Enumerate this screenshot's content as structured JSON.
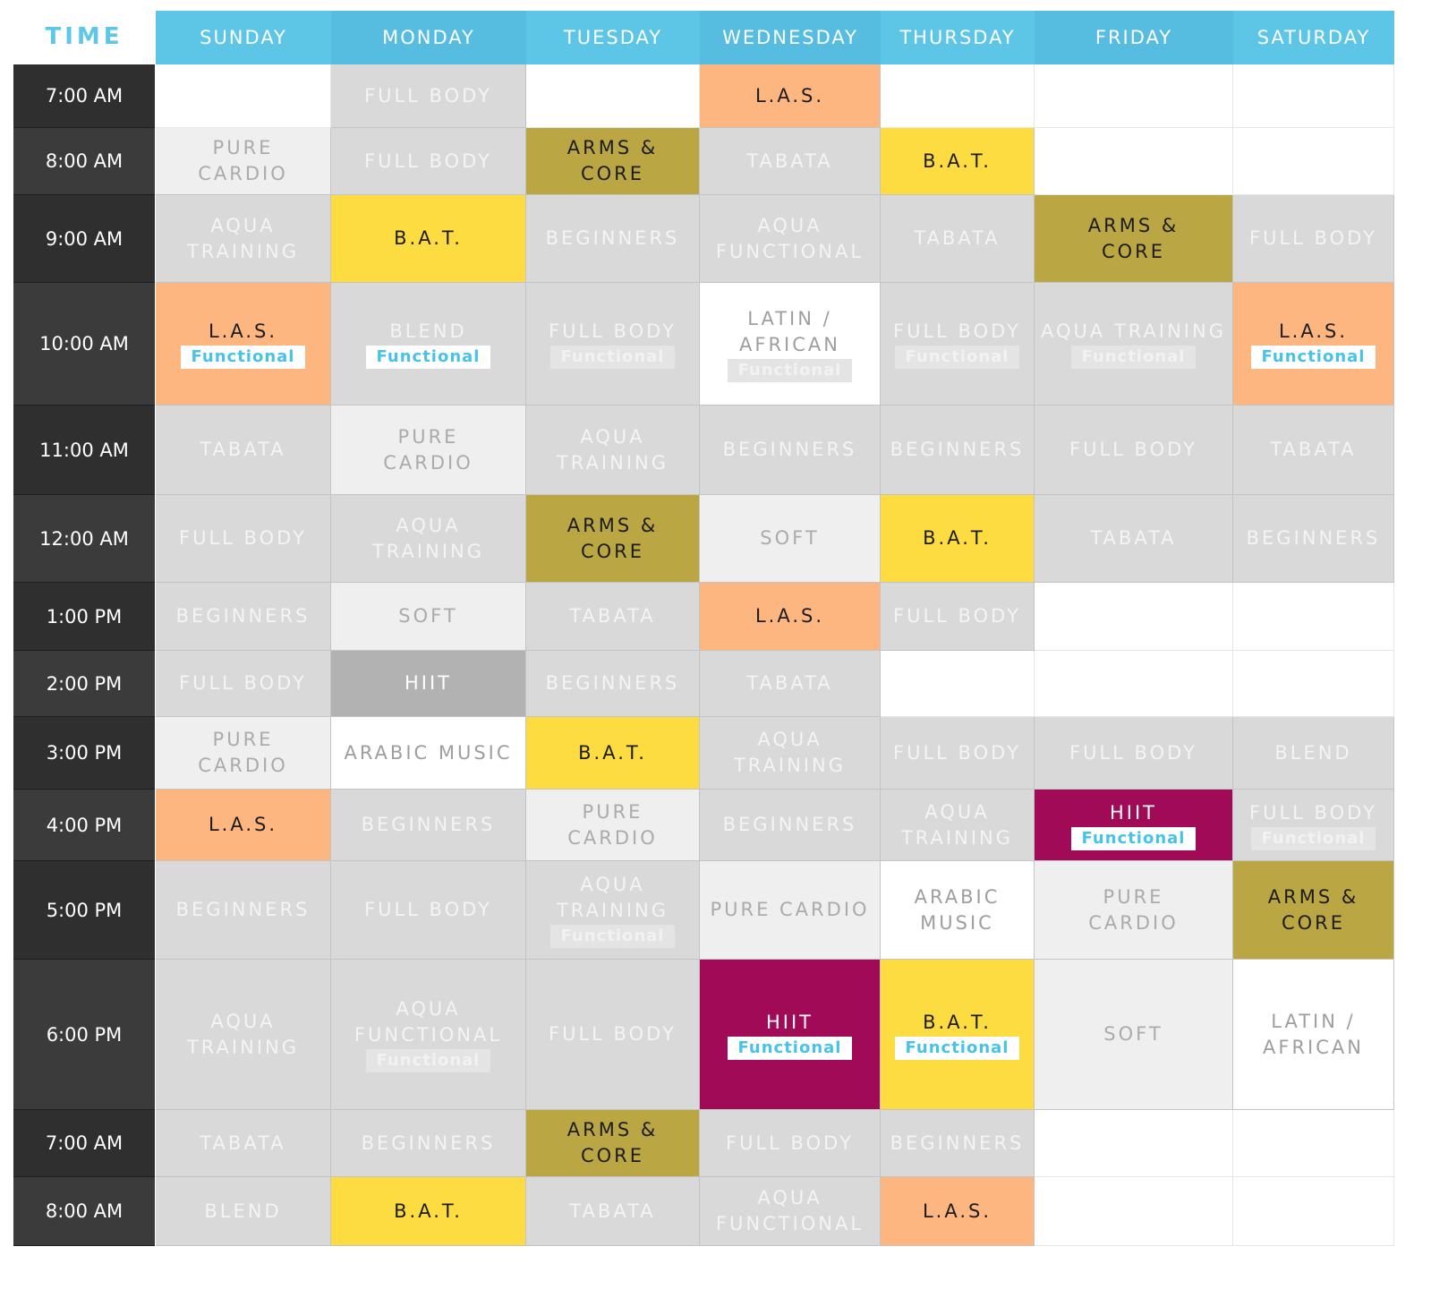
{
  "header": {
    "time_label": "TIME",
    "days": [
      "SUNDAY",
      "MONDAY",
      "TUESDAY",
      "WEDNESDAY",
      "THURSDAY",
      "FRIDAY",
      "SATURDAY"
    ]
  },
  "rows": [
    {
      "time": "7:00 AM",
      "cells": [
        {
          "style": "empty"
        },
        {
          "label": "FULL BODY",
          "style": "gray"
        },
        {
          "style": "empty"
        },
        {
          "label": "L.A.S.",
          "style": "peach"
        },
        {
          "style": "empty"
        },
        {
          "style": "empty"
        },
        {
          "style": "empty"
        }
      ]
    },
    {
      "time": "8:00 AM",
      "cells": [
        {
          "label": "PURE\nCARDIO",
          "style": "light"
        },
        {
          "label": "FULL BODY",
          "style": "gray"
        },
        {
          "label": "ARMS &\nCORE",
          "style": "olive"
        },
        {
          "label": "TABATA",
          "style": "gray"
        },
        {
          "label": "B.A.T.",
          "style": "yellow"
        },
        {
          "style": "empty"
        },
        {
          "style": "empty"
        }
      ]
    },
    {
      "time": "9:00 AM",
      "cells": [
        {
          "label": "AQUA\nTRAINING",
          "style": "gray"
        },
        {
          "label": "B.A.T.",
          "style": "yellow"
        },
        {
          "label": "BEGINNERS",
          "style": "gray"
        },
        {
          "label": "AQUA\nFUNCTIONAL",
          "style": "gray"
        },
        {
          "label": "TABATA",
          "style": "gray"
        },
        {
          "label": "ARMS &\nCORE",
          "style": "olive"
        },
        {
          "label": "FULL BODY",
          "style": "gray"
        }
      ]
    },
    {
      "time": "10:00 AM",
      "cells": [
        {
          "label": "L.A.S.",
          "tag": "Functional",
          "tag_style": "white",
          "style": "peach"
        },
        {
          "label": "BLEND",
          "tag": "Functional",
          "tag_style": "white",
          "style": "gray"
        },
        {
          "label": "FULL BODY",
          "tag": "Functional",
          "tag_style": "faded",
          "style": "gray"
        },
        {
          "label": "LATIN /\nAFRICAN",
          "tag": "Functional",
          "tag_style": "faded",
          "style": "white"
        },
        {
          "label": "FULL BODY",
          "tag": "Functional",
          "tag_style": "faded",
          "style": "gray"
        },
        {
          "label": "AQUA TRAINING",
          "tag": "Functional",
          "tag_style": "faded",
          "style": "gray"
        },
        {
          "label": "L.A.S.",
          "tag": "Functional",
          "tag_style": "white",
          "style": "peach"
        }
      ]
    },
    {
      "time": "11:00 AM",
      "cells": [
        {
          "label": "TABATA",
          "style": "gray"
        },
        {
          "label": "PURE\nCARDIO",
          "style": "light"
        },
        {
          "label": "AQUA\nTRAINING",
          "style": "gray"
        },
        {
          "label": "BEGINNERS",
          "style": "gray"
        },
        {
          "label": "BEGINNERS",
          "style": "gray"
        },
        {
          "label": "FULL BODY",
          "style": "gray"
        },
        {
          "label": "TABATA",
          "style": "gray"
        }
      ]
    },
    {
      "time": "12:00 AM",
      "cells": [
        {
          "label": "FULL BODY",
          "style": "gray"
        },
        {
          "label": "AQUA\nTRAINING",
          "style": "gray"
        },
        {
          "label": "ARMS &\nCORE",
          "style": "olive"
        },
        {
          "label": "SOFT",
          "style": "light"
        },
        {
          "label": "B.A.T.",
          "style": "yellow"
        },
        {
          "label": "TABATA",
          "style": "gray"
        },
        {
          "label": "BEGINNERS",
          "style": "gray"
        }
      ]
    },
    {
      "time": "1:00 PM",
      "cells": [
        {
          "label": "BEGINNERS",
          "style": "gray"
        },
        {
          "label": "SOFT",
          "style": "light"
        },
        {
          "label": "TABATA",
          "style": "gray"
        },
        {
          "label": "L.A.S.",
          "style": "peach"
        },
        {
          "label": "FULL BODY",
          "style": "gray"
        },
        {
          "style": "empty"
        },
        {
          "style": "empty"
        }
      ]
    },
    {
      "time": "2:00 PM",
      "cells": [
        {
          "label": "FULL BODY",
          "style": "gray"
        },
        {
          "label": "HIIT",
          "style": "dark"
        },
        {
          "label": "BEGINNERS",
          "style": "gray"
        },
        {
          "label": "TABATA",
          "style": "gray"
        },
        {
          "style": "empty"
        },
        {
          "style": "empty"
        },
        {
          "style": "empty"
        }
      ]
    },
    {
      "time": "3:00 PM",
      "cells": [
        {
          "label": "PURE\nCARDIO",
          "style": "light"
        },
        {
          "label": "ARABIC MUSIC",
          "style": "white"
        },
        {
          "label": "B.A.T.",
          "style": "yellow"
        },
        {
          "label": "AQUA\nTRAINING",
          "style": "gray"
        },
        {
          "label": "FULL BODY",
          "style": "gray"
        },
        {
          "label": "FULL BODY",
          "style": "gray"
        },
        {
          "label": "BLEND",
          "style": "gray"
        }
      ]
    },
    {
      "time": "4:00 PM",
      "cells": [
        {
          "label": "L.A.S.",
          "style": "peach"
        },
        {
          "label": "BEGINNERS",
          "style": "gray"
        },
        {
          "label": "PURE\nCARDIO",
          "style": "light"
        },
        {
          "label": "BEGINNERS",
          "style": "gray"
        },
        {
          "label": "AQUA\nTRAINING",
          "style": "gray"
        },
        {
          "label": "HIIT",
          "tag": "Functional",
          "tag_style": "white",
          "style": "magenta"
        },
        {
          "label": "FULL BODY",
          "tag": "Functional",
          "tag_style": "faded",
          "style": "gray"
        }
      ]
    },
    {
      "time": "5:00 PM",
      "cells": [
        {
          "label": "BEGINNERS",
          "style": "gray"
        },
        {
          "label": "FULL BODY",
          "style": "gray"
        },
        {
          "label": "AQUA\nTRAINING",
          "tag": "Functional",
          "tag_style": "faded",
          "style": "gray"
        },
        {
          "label": "PURE CARDIO",
          "style": "light"
        },
        {
          "label": "ARABIC\nMUSIC",
          "style": "white"
        },
        {
          "label": "PURE\nCARDIO",
          "style": "light"
        },
        {
          "label": "ARMS &\nCORE",
          "style": "olive"
        }
      ]
    },
    {
      "time": "6:00 PM",
      "cells": [
        {
          "label": "AQUA\nTRAINING",
          "style": "gray"
        },
        {
          "label": "AQUA\nFUNCTIONAL",
          "tag": "Functional",
          "tag_style": "faded",
          "style": "gray"
        },
        {
          "label": "FULL BODY",
          "style": "gray"
        },
        {
          "label": "HIIT",
          "tag": "Functional",
          "tag_style": "white",
          "style": "magenta"
        },
        {
          "label": "B.A.T.",
          "tag": "Functional",
          "tag_style": "white",
          "style": "yellow"
        },
        {
          "label": "SOFT",
          "style": "light"
        },
        {
          "label": "LATIN /\nAFRICAN",
          "style": "white"
        }
      ]
    },
    {
      "time": "7:00 AM",
      "cells": [
        {
          "label": "TABATA",
          "style": "gray"
        },
        {
          "label": "BEGINNERS",
          "style": "gray"
        },
        {
          "label": "ARMS &\nCORE",
          "style": "olive"
        },
        {
          "label": "FULL BODY",
          "style": "gray"
        },
        {
          "label": "BEGINNERS",
          "style": "gray"
        },
        {
          "style": "empty"
        },
        {
          "style": "empty"
        }
      ]
    },
    {
      "time": "8:00 AM",
      "cells": [
        {
          "label": "BLEND",
          "style": "gray"
        },
        {
          "label": "B.A.T.",
          "style": "yellow"
        },
        {
          "label": "TABATA",
          "style": "gray"
        },
        {
          "label": "AQUA\nFUNCTIONAL",
          "style": "gray"
        },
        {
          "label": "L.A.S.",
          "style": "peach"
        },
        {
          "style": "empty"
        },
        {
          "style": "empty"
        }
      ]
    }
  ]
}
